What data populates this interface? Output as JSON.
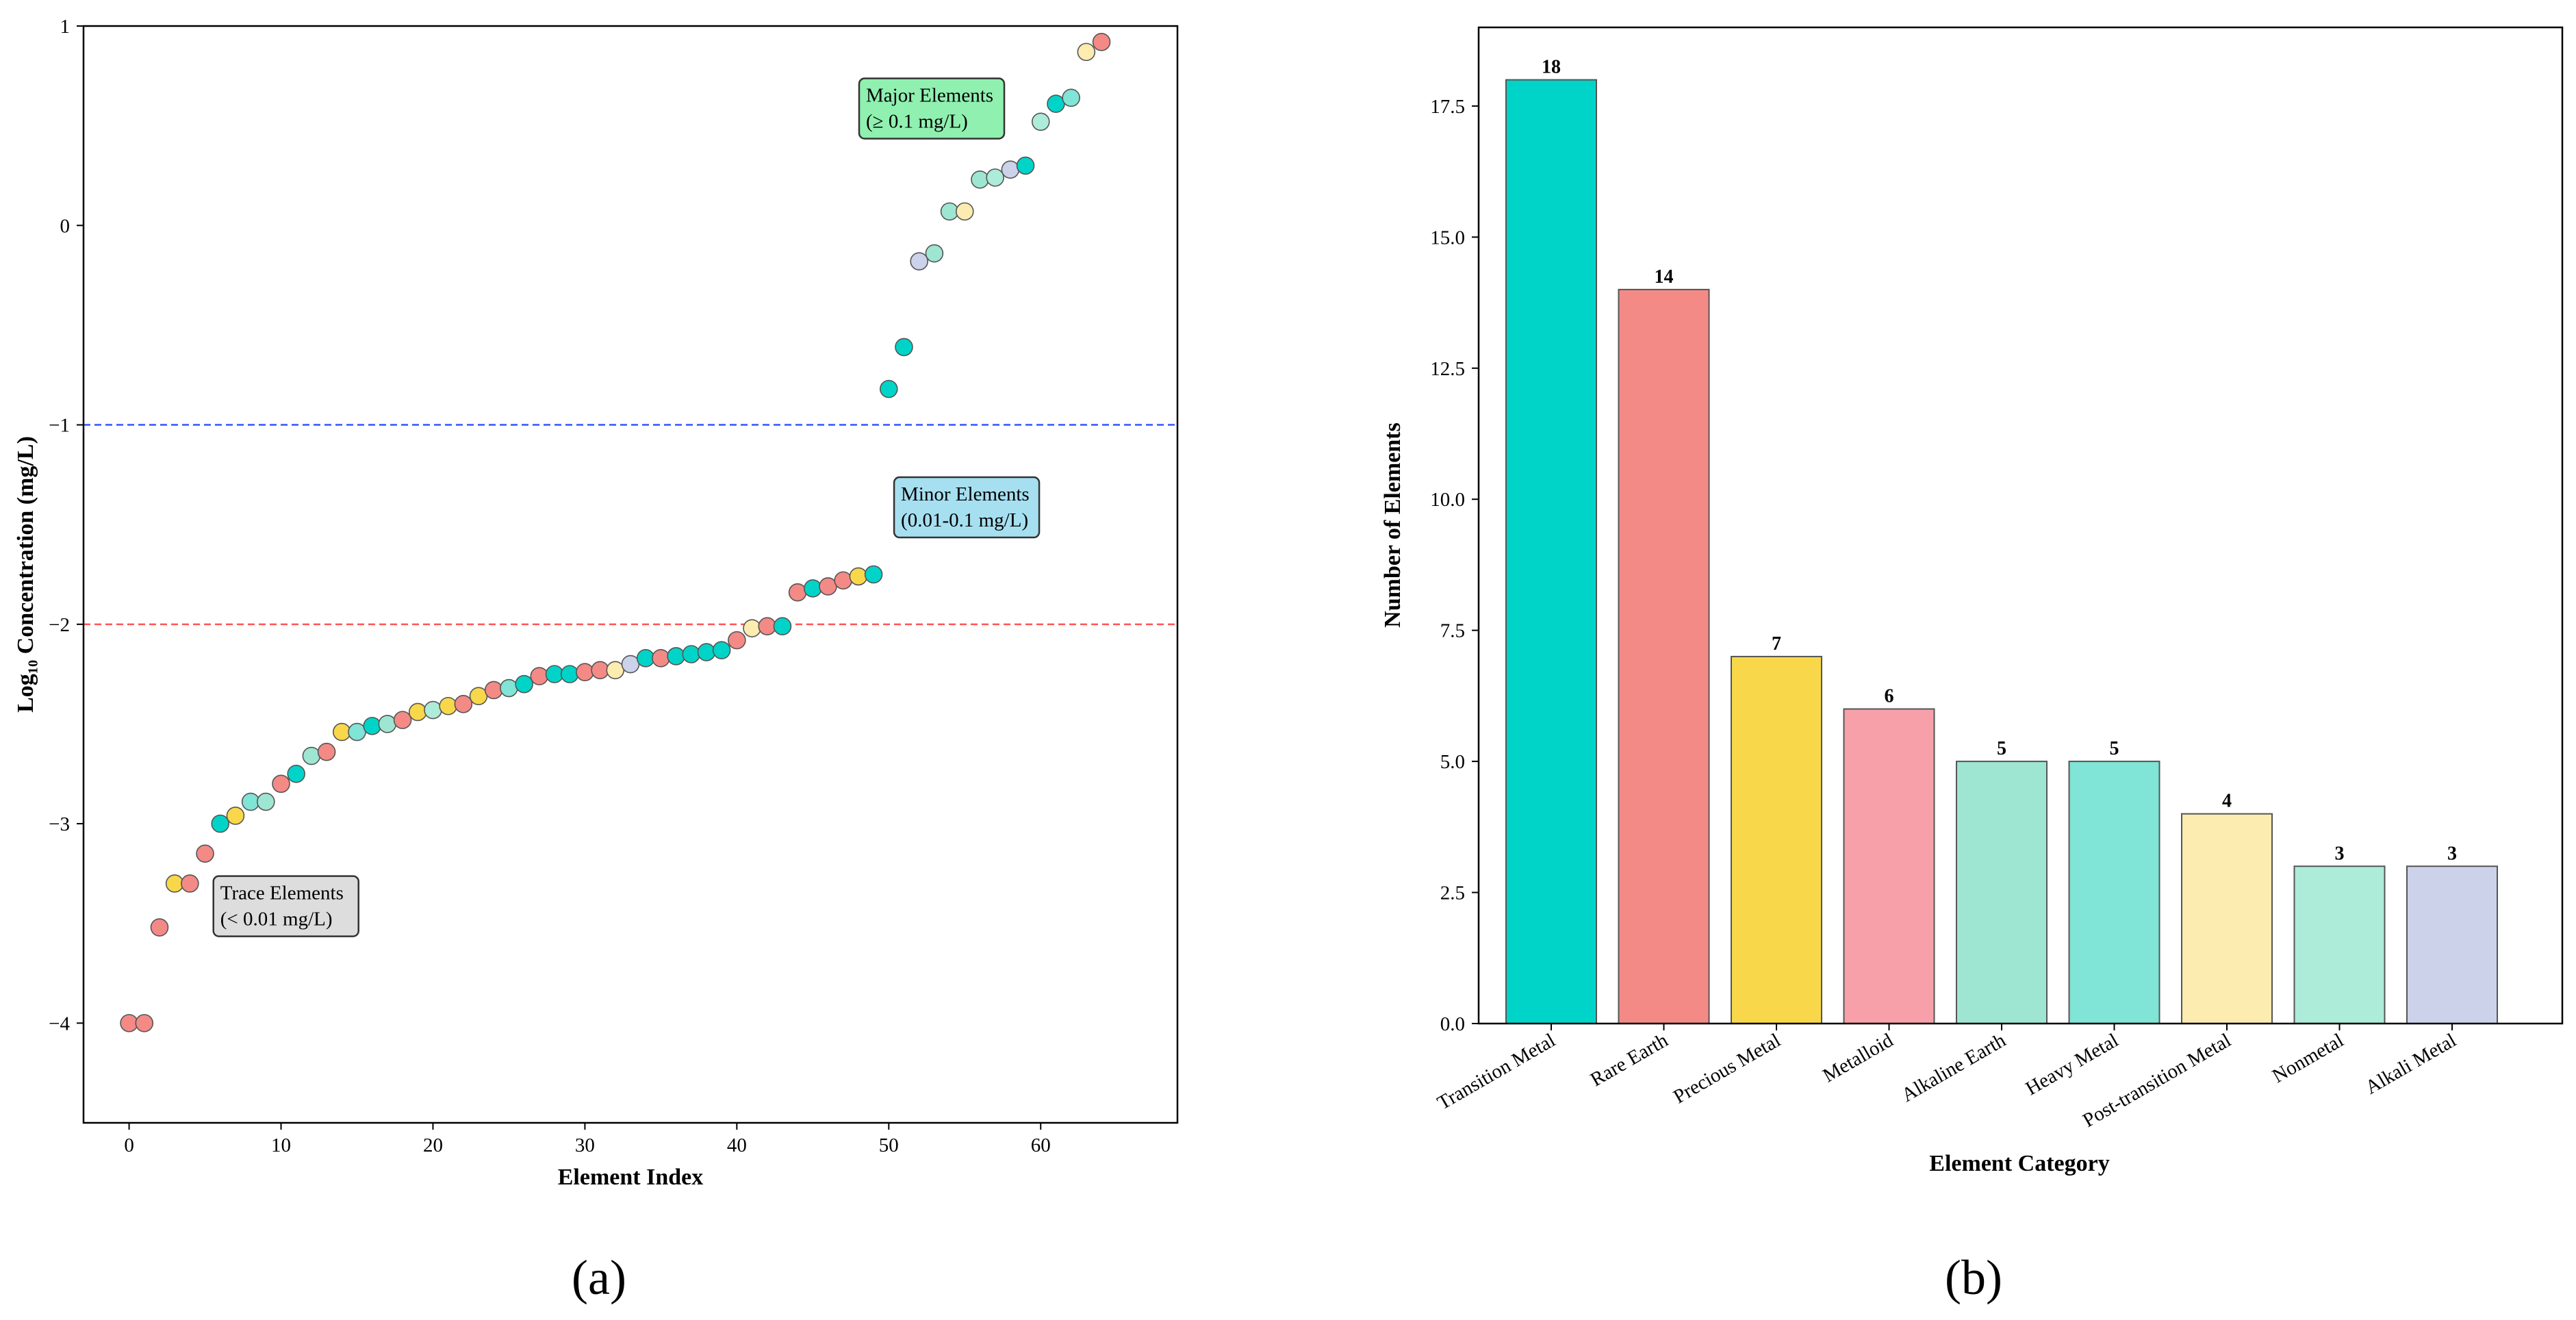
{
  "panels": {
    "a": {
      "label": "(a)"
    },
    "b": {
      "label": "(b)"
    }
  },
  "colors": {
    "transition": "#00d4c8",
    "rare_earth": "#f48a86",
    "precious": "#f8d84a",
    "metalloid": "#f8a0aa",
    "alkaline_earth": "#9ee6d2",
    "heavy": "#80e4d6",
    "post_transition": "#fcecb0",
    "nonmetal": "#acecd8",
    "alkali": "#ccd2ea",
    "major_box": "#90f0b0",
    "minor_box": "#a6dff0",
    "trace_box": "#dddddd",
    "major_line": "#3355ff",
    "minor_line": "#ff5555"
  },
  "chart_data": [
    {
      "type": "scatter",
      "xlabel": "Element Index",
      "ylabel": "Log₁₀ Concentration (mg/L)",
      "xlim": [
        -3,
        69
      ],
      "ylim": [
        -4.5,
        1
      ],
      "xticks": [
        0,
        10,
        20,
        30,
        40,
        50,
        60
      ],
      "yticks": [
        {
          "value": 1,
          "label": "1"
        },
        {
          "value": 0,
          "label": "0"
        },
        {
          "value": -1,
          "label": "−1"
        },
        {
          "value": -2,
          "label": "−2"
        },
        {
          "value": -3,
          "label": "−3"
        },
        {
          "value": -4,
          "label": "−4"
        }
      ],
      "thresholds": [
        {
          "y": -1,
          "color": "major_line"
        },
        {
          "y": -2,
          "color": "minor_line"
        }
      ],
      "annotations": [
        {
          "lines": [
            "Major Elements",
            "(≥ 0.1 mg/L)"
          ],
          "color": "major_box",
          "x": 48.5,
          "y": 0.6
        },
        {
          "lines": [
            "Minor Elements",
            "(0.01-0.1 mg/L)"
          ],
          "color": "minor_box",
          "x": 50.8,
          "y": -1.4
        },
        {
          "lines": [
            "Trace Elements",
            "(< 0.01 mg/L)"
          ],
          "color": "trace_box",
          "x": 6.0,
          "y": -3.4
        }
      ],
      "points": [
        {
          "x": 0,
          "y": -4.0,
          "c": "rare_earth"
        },
        {
          "x": 1,
          "y": -4.0,
          "c": "rare_earth"
        },
        {
          "x": 2,
          "y": -3.52,
          "c": "rare_earth"
        },
        {
          "x": 3,
          "y": -3.3,
          "c": "precious"
        },
        {
          "x": 4,
          "y": -3.3,
          "c": "rare_earth"
        },
        {
          "x": 5,
          "y": -3.15,
          "c": "rare_earth"
        },
        {
          "x": 6,
          "y": -3.0,
          "c": "transition"
        },
        {
          "x": 7,
          "y": -2.96,
          "c": "precious"
        },
        {
          "x": 8,
          "y": -2.89,
          "c": "heavy"
        },
        {
          "x": 9,
          "y": -2.89,
          "c": "alkaline_earth"
        },
        {
          "x": 10,
          "y": -2.8,
          "c": "rare_earth"
        },
        {
          "x": 11,
          "y": -2.75,
          "c": "transition"
        },
        {
          "x": 12,
          "y": -2.66,
          "c": "alkaline_earth"
        },
        {
          "x": 13,
          "y": -2.64,
          "c": "rare_earth"
        },
        {
          "x": 14,
          "y": -2.54,
          "c": "precious"
        },
        {
          "x": 15,
          "y": -2.54,
          "c": "heavy"
        },
        {
          "x": 16,
          "y": -2.51,
          "c": "transition"
        },
        {
          "x": 17,
          "y": -2.5,
          "c": "alkaline_earth"
        },
        {
          "x": 18,
          "y": -2.48,
          "c": "rare_earth"
        },
        {
          "x": 19,
          "y": -2.44,
          "c": "precious"
        },
        {
          "x": 20,
          "y": -2.43,
          "c": "nonmetal"
        },
        {
          "x": 21,
          "y": -2.41,
          "c": "precious"
        },
        {
          "x": 22,
          "y": -2.4,
          "c": "rare_earth"
        },
        {
          "x": 23,
          "y": -2.36,
          "c": "precious"
        },
        {
          "x": 24,
          "y": -2.33,
          "c": "rare_earth"
        },
        {
          "x": 25,
          "y": -2.32,
          "c": "heavy"
        },
        {
          "x": 26,
          "y": -2.3,
          "c": "transition"
        },
        {
          "x": 27,
          "y": -2.26,
          "c": "rare_earth"
        },
        {
          "x": 28,
          "y": -2.25,
          "c": "transition"
        },
        {
          "x": 29,
          "y": -2.25,
          "c": "transition"
        },
        {
          "x": 30,
          "y": -2.24,
          "c": "rare_earth"
        },
        {
          "x": 31,
          "y": -2.23,
          "c": "rare_earth"
        },
        {
          "x": 32,
          "y": -2.23,
          "c": "post_transition"
        },
        {
          "x": 33,
          "y": -2.2,
          "c": "alkali"
        },
        {
          "x": 34,
          "y": -2.17,
          "c": "transition"
        },
        {
          "x": 35,
          "y": -2.17,
          "c": "rare_earth"
        },
        {
          "x": 36,
          "y": -2.16,
          "c": "transition"
        },
        {
          "x": 37,
          "y": -2.15,
          "c": "transition"
        },
        {
          "x": 38,
          "y": -2.14,
          "c": "transition"
        },
        {
          "x": 39,
          "y": -2.13,
          "c": "transition"
        },
        {
          "x": 40,
          "y": -2.08,
          "c": "rare_earth"
        },
        {
          "x": 41,
          "y": -2.02,
          "c": "post_transition"
        },
        {
          "x": 42,
          "y": -2.01,
          "c": "rare_earth"
        },
        {
          "x": 43,
          "y": -2.01,
          "c": "transition"
        },
        {
          "x": 44,
          "y": -1.84,
          "c": "rare_earth"
        },
        {
          "x": 45,
          "y": -1.82,
          "c": "transition"
        },
        {
          "x": 46,
          "y": -1.81,
          "c": "rare_earth"
        },
        {
          "x": 47,
          "y": -1.78,
          "c": "rare_earth"
        },
        {
          "x": 48,
          "y": -1.76,
          "c": "precious"
        },
        {
          "x": 49,
          "y": -1.75,
          "c": "transition"
        },
        {
          "x": 50,
          "y": -0.82,
          "c": "transition"
        },
        {
          "x": 51,
          "y": -0.61,
          "c": "transition"
        },
        {
          "x": 52,
          "y": -0.18,
          "c": "alkali"
        },
        {
          "x": 53,
          "y": -0.14,
          "c": "alkaline_earth"
        },
        {
          "x": 54,
          "y": 0.07,
          "c": "alkaline_earth"
        },
        {
          "x": 55,
          "y": 0.07,
          "c": "post_transition"
        },
        {
          "x": 56,
          "y": 0.23,
          "c": "alkaline_earth"
        },
        {
          "x": 57,
          "y": 0.24,
          "c": "nonmetal"
        },
        {
          "x": 58,
          "y": 0.28,
          "c": "alkali"
        },
        {
          "x": 59,
          "y": 0.3,
          "c": "transition"
        },
        {
          "x": 60,
          "y": 0.52,
          "c": "nonmetal"
        },
        {
          "x": 61,
          "y": 0.61,
          "c": "transition"
        },
        {
          "x": 62,
          "y": 0.64,
          "c": "heavy"
        },
        {
          "x": 63,
          "y": 0.87,
          "c": "post_transition"
        },
        {
          "x": 64,
          "y": 0.92,
          "c": "rare_earth"
        }
      ]
    },
    {
      "type": "bar",
      "xlabel": "Element Category",
      "ylabel": "Number of Elements",
      "ylim": [
        0,
        19
      ],
      "yticks": [
        {
          "value": 0,
          "label": "0.0"
        },
        {
          "value": 2.5,
          "label": "2.5"
        },
        {
          "value": 5,
          "label": "5.0"
        },
        {
          "value": 7.5,
          "label": "7.5"
        },
        {
          "value": 10,
          "label": "10.0"
        },
        {
          "value": 12.5,
          "label": "12.5"
        },
        {
          "value": 15,
          "label": "15.0"
        },
        {
          "value": 17.5,
          "label": "17.5"
        }
      ],
      "categories": [
        "Transition Metal",
        "Rare Earth",
        "Precious Metal",
        "Metalloid",
        "Alkaline Earth",
        "Heavy Metal",
        "Post-transition Metal",
        "Nonmetal",
        "Alkali Metal"
      ],
      "values": [
        18,
        14,
        7,
        6,
        5,
        5,
        4,
        3,
        3
      ],
      "value_labels": [
        "18",
        "14",
        "7",
        "6",
        "5",
        "5",
        "4",
        "3",
        "3"
      ],
      "bar_colors": [
        "transition",
        "rare_earth",
        "precious",
        "metalloid",
        "alkaline_earth",
        "heavy",
        "post_transition",
        "nonmetal",
        "alkali"
      ]
    }
  ]
}
